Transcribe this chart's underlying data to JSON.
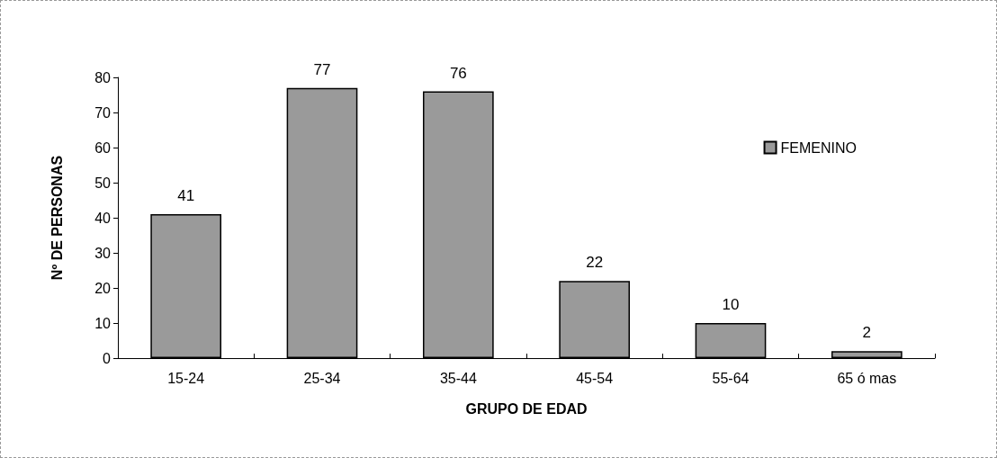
{
  "chart_data": {
    "type": "bar",
    "xlabel": "GRUPO DE EDAD",
    "ylabel": "Nº DE PERSONAS",
    "categories": [
      "15-24",
      "25-34",
      "35-44",
      "45-54",
      "55-64",
      "65 ó mas"
    ],
    "series": [
      {
        "name": "FEMENINO",
        "color": "#9a9a9a",
        "values": [
          41,
          77,
          76,
          22,
          10,
          2
        ]
      }
    ],
    "ylim": [
      0,
      80
    ],
    "yticks": [
      0,
      10,
      20,
      30,
      40,
      50,
      60,
      70,
      80
    ],
    "grid": false,
    "legend": "right",
    "data_labels": true
  }
}
